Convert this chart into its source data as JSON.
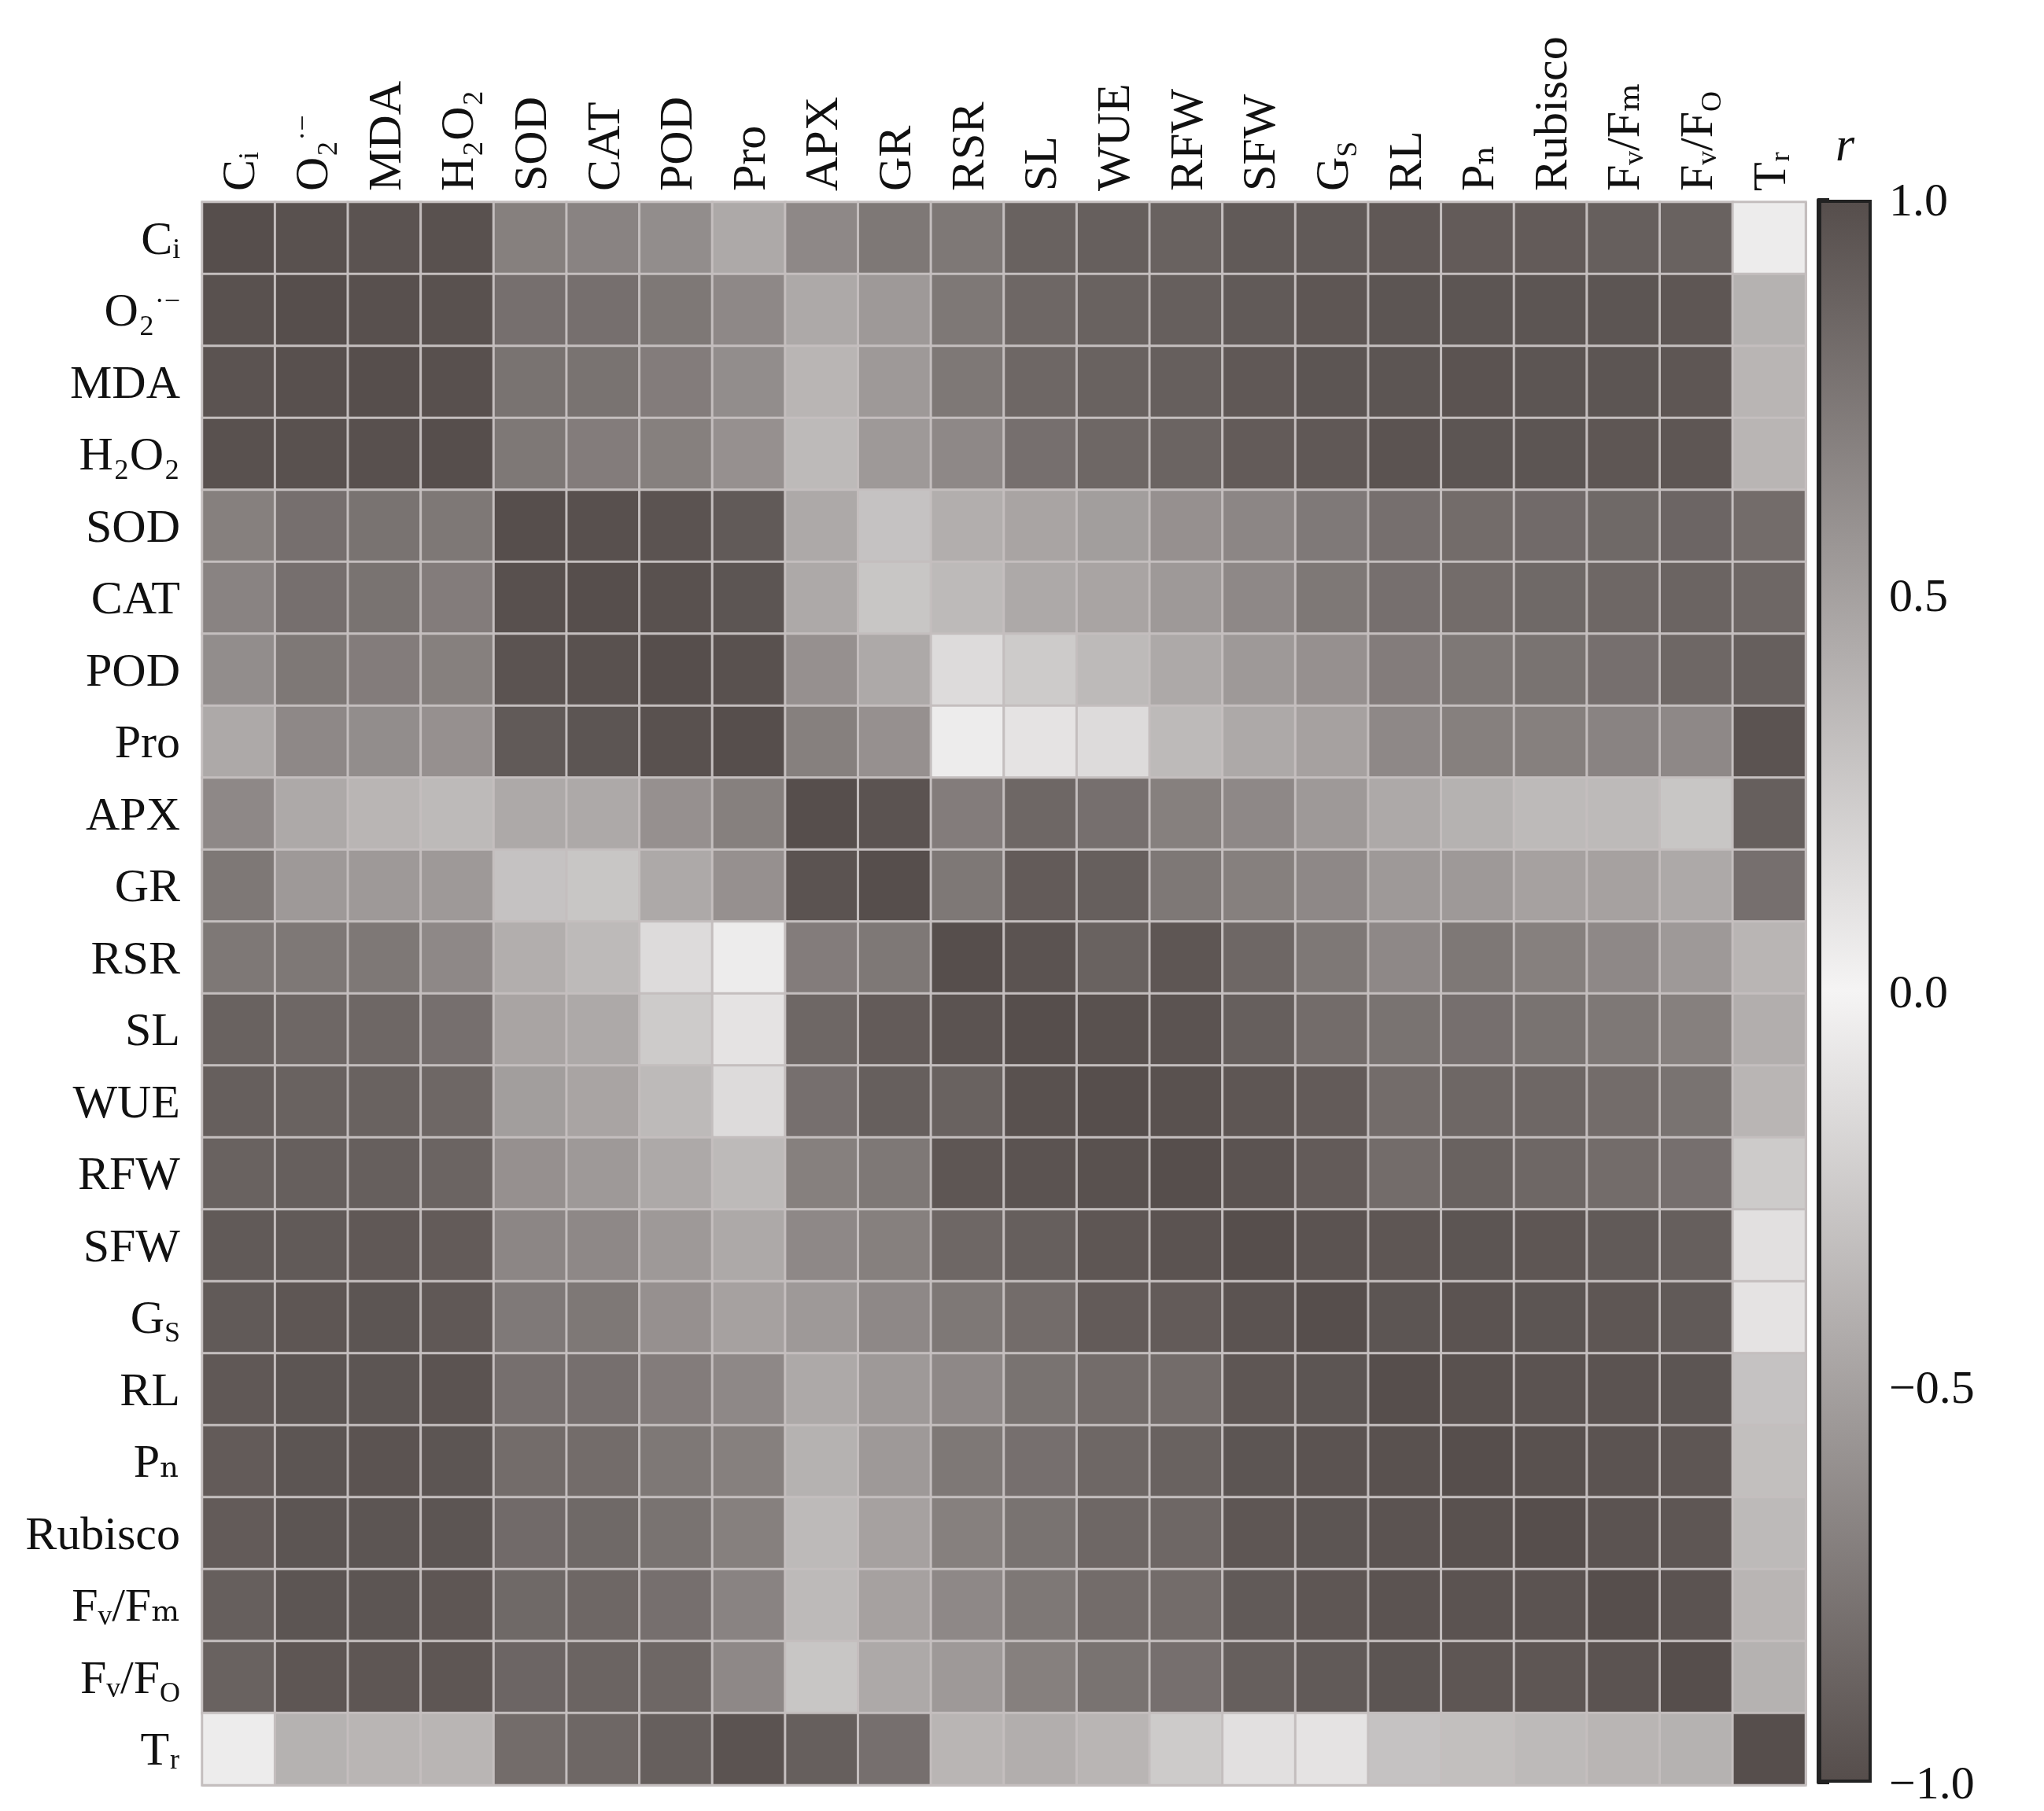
{
  "chart_data": {
    "type": "heatmap",
    "grid": true,
    "clabel": "r",
    "categories": [
      "Cᵢ",
      "O₂$^{·−}$",
      "MDA",
      "H₂O₂",
      "SOD",
      "CAT",
      "POD",
      "Pro",
      "APX",
      "GR",
      "RSR",
      "SL",
      "WUE",
      "RFW",
      "SFW",
      "G$_{S}$",
      "RL",
      "Pₙ",
      "Rubisco",
      "Fᵥ/Fₘ",
      "Fᵥ/F$_{O}$",
      "Tᵣ"
    ],
    "y_categories": [
      "Cᵢ",
      "O₂$^{·−}$",
      "MDA",
      "H₂O₂",
      "SOD",
      "CAT",
      "POD",
      "Pro",
      "APX",
      "GR",
      "RSR",
      "SL",
      "WUE",
      "RFW",
      "SFW",
      "G$_{S}$",
      "RL",
      "Pₙ",
      "Rubisco",
      "Fᵥ/Fₘ",
      "Fᵥ/F$_{O}$",
      "Tᵣ"
    ],
    "clim": [
      -1,
      1
    ],
    "cticks": [
      {
        "value": -1,
        "label": "−1.0"
      },
      {
        "value": -0.5,
        "label": "−0.5"
      },
      {
        "value": 0,
        "label": "0.0"
      },
      {
        "value": 0.5,
        "label": "0.5"
      },
      {
        "value": 1,
        "label": "1.0"
      }
    ],
    "cells": [
      [
        1,
        0.98,
        0.97,
        0.98,
        0.7,
        0.68,
        0.62,
        0.45,
        0.65,
        0.75,
        0.75,
        0.88,
        0.9,
        0.88,
        0.93,
        0.93,
        0.94,
        0.92,
        0.92,
        0.9,
        0.88,
        0.05
      ],
      [
        0.98,
        1,
        0.99,
        0.98,
        0.8,
        0.8,
        0.75,
        0.65,
        0.45,
        0.55,
        0.75,
        0.85,
        0.88,
        0.9,
        0.93,
        0.95,
        0.96,
        0.96,
        0.96,
        0.96,
        0.95,
        0.4
      ],
      [
        0.97,
        0.99,
        1,
        0.99,
        0.78,
        0.78,
        0.72,
        0.62,
        0.38,
        0.55,
        0.75,
        0.85,
        0.88,
        0.9,
        0.94,
        0.96,
        0.96,
        0.97,
        0.96,
        0.96,
        0.95,
        0.38
      ],
      [
        0.98,
        0.98,
        0.99,
        1,
        0.75,
        0.72,
        0.7,
        0.6,
        0.35,
        0.55,
        0.65,
        0.8,
        0.85,
        0.87,
        0.92,
        0.94,
        0.97,
        0.96,
        0.96,
        0.95,
        0.95,
        0.38
      ],
      [
        0.7,
        0.8,
        0.78,
        0.75,
        1,
        0.99,
        0.97,
        0.93,
        0.45,
        0.3,
        0.42,
        0.48,
        0.52,
        0.6,
        0.66,
        0.74,
        0.8,
        0.82,
        0.83,
        0.84,
        0.86,
        0.82
      ],
      [
        0.68,
        0.8,
        0.78,
        0.72,
        0.99,
        1,
        0.98,
        0.96,
        0.45,
        0.28,
        0.35,
        0.45,
        0.48,
        0.55,
        0.65,
        0.75,
        0.8,
        0.82,
        0.84,
        0.85,
        0.87,
        0.85
      ],
      [
        0.62,
        0.75,
        0.72,
        0.7,
        0.97,
        0.98,
        1,
        0.98,
        0.6,
        0.45,
        0.15,
        0.25,
        0.35,
        0.45,
        0.55,
        0.6,
        0.72,
        0.75,
        0.78,
        0.8,
        0.85,
        0.9
      ],
      [
        0.45,
        0.65,
        0.62,
        0.6,
        0.93,
        0.96,
        0.98,
        1,
        0.7,
        0.6,
        0.05,
        0.1,
        0.15,
        0.35,
        0.45,
        0.5,
        0.65,
        0.7,
        0.7,
        0.68,
        0.65,
        0.97
      ],
      [
        0.65,
        0.45,
        0.38,
        0.35,
        0.45,
        0.45,
        0.6,
        0.7,
        1,
        0.97,
        0.72,
        0.85,
        0.8,
        0.7,
        0.65,
        0.55,
        0.45,
        0.4,
        0.35,
        0.35,
        0.28,
        0.9
      ],
      [
        0.75,
        0.55,
        0.55,
        0.55,
        0.3,
        0.28,
        0.45,
        0.6,
        0.97,
        1,
        0.75,
        0.92,
        0.9,
        0.75,
        0.7,
        0.65,
        0.55,
        0.55,
        0.5,
        0.5,
        0.45,
        0.8
      ],
      [
        0.75,
        0.75,
        0.75,
        0.65,
        0.42,
        0.35,
        0.15,
        0.05,
        0.72,
        0.75,
        1,
        0.97,
        0.88,
        0.95,
        0.85,
        0.75,
        0.65,
        0.75,
        0.7,
        0.65,
        0.55,
        0.38
      ],
      [
        0.88,
        0.85,
        0.85,
        0.8,
        0.48,
        0.45,
        0.25,
        0.1,
        0.85,
        0.92,
        0.97,
        1,
        0.98,
        0.97,
        0.9,
        0.82,
        0.78,
        0.8,
        0.78,
        0.75,
        0.7,
        0.42
      ],
      [
        0.9,
        0.88,
        0.88,
        0.85,
        0.52,
        0.48,
        0.35,
        0.15,
        0.8,
        0.9,
        0.88,
        0.98,
        1,
        0.98,
        0.95,
        0.92,
        0.82,
        0.85,
        0.85,
        0.82,
        0.78,
        0.38
      ],
      [
        0.88,
        0.9,
        0.9,
        0.87,
        0.6,
        0.55,
        0.45,
        0.35,
        0.7,
        0.75,
        0.95,
        0.97,
        0.98,
        1,
        0.97,
        0.92,
        0.82,
        0.88,
        0.85,
        0.82,
        0.8,
        0.25
      ],
      [
        0.93,
        0.93,
        0.94,
        0.92,
        0.66,
        0.65,
        0.55,
        0.45,
        0.65,
        0.7,
        0.85,
        0.9,
        0.95,
        0.97,
        1,
        0.97,
        0.95,
        0.96,
        0.95,
        0.93,
        0.9,
        0.12
      ],
      [
        0.93,
        0.95,
        0.96,
        0.94,
        0.74,
        0.75,
        0.6,
        0.5,
        0.55,
        0.65,
        0.75,
        0.82,
        0.92,
        0.92,
        0.97,
        1,
        0.96,
        0.97,
        0.96,
        0.95,
        0.93,
        0.1
      ],
      [
        0.94,
        0.96,
        0.96,
        0.97,
        0.8,
        0.8,
        0.72,
        0.65,
        0.45,
        0.55,
        0.65,
        0.78,
        0.82,
        0.82,
        0.95,
        0.96,
        1,
        0.98,
        0.97,
        0.97,
        0.96,
        0.3
      ],
      [
        0.92,
        0.96,
        0.97,
        0.96,
        0.82,
        0.82,
        0.75,
        0.7,
        0.4,
        0.55,
        0.75,
        0.8,
        0.85,
        0.88,
        0.96,
        0.97,
        0.98,
        1,
        0.98,
        0.97,
        0.95,
        0.32
      ],
      [
        0.92,
        0.96,
        0.96,
        0.96,
        0.83,
        0.84,
        0.78,
        0.7,
        0.35,
        0.5,
        0.7,
        0.78,
        0.85,
        0.85,
        0.95,
        0.96,
        0.97,
        0.98,
        1,
        0.97,
        0.95,
        0.35
      ],
      [
        0.9,
        0.96,
        0.96,
        0.95,
        0.84,
        0.85,
        0.8,
        0.68,
        0.35,
        0.5,
        0.65,
        0.75,
        0.82,
        0.82,
        0.93,
        0.95,
        0.97,
        0.97,
        0.97,
        1,
        0.97,
        0.38
      ],
      [
        0.88,
        0.95,
        0.95,
        0.95,
        0.86,
        0.87,
        0.85,
        0.65,
        0.28,
        0.45,
        0.55,
        0.7,
        0.78,
        0.8,
        0.9,
        0.93,
        0.96,
        0.95,
        0.95,
        0.97,
        1,
        0.4
      ],
      [
        0.05,
        0.4,
        0.38,
        0.38,
        0.82,
        0.85,
        0.9,
        0.97,
        0.9,
        0.8,
        0.38,
        0.42,
        0.38,
        0.25,
        0.12,
        0.1,
        0.3,
        0.32,
        0.35,
        0.38,
        0.4,
        1
      ]
    ]
  }
}
